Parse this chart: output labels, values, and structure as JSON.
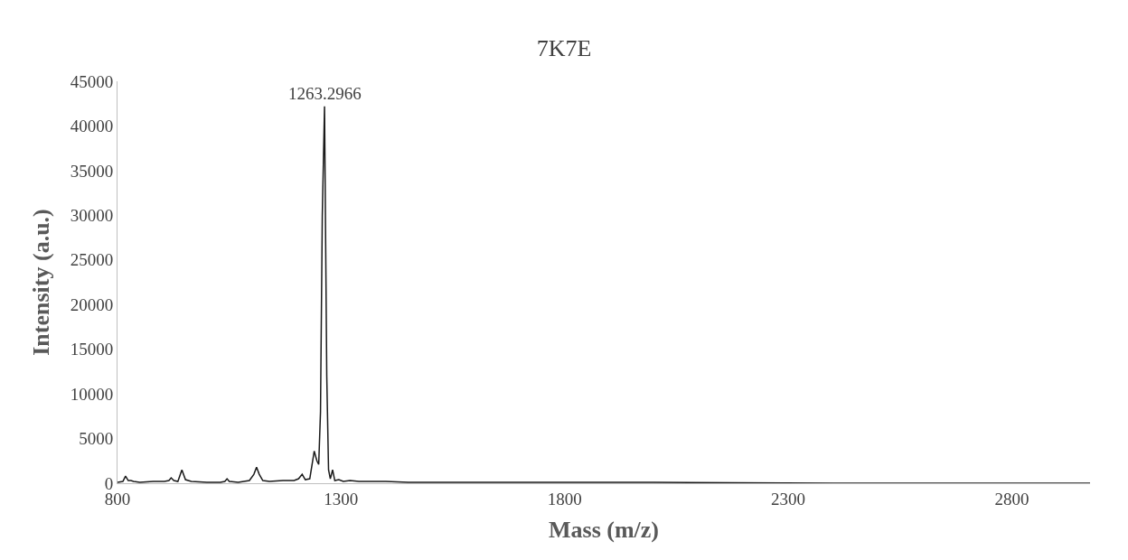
{
  "chart_data": {
    "type": "line",
    "title": "7K7E",
    "xlabel": "Mass (m/z)",
    "ylabel": "Intensity (a.u.)",
    "x": [
      800,
      812,
      818,
      824,
      830,
      836,
      850,
      880,
      905,
      915,
      920,
      926,
      935,
      944,
      952,
      965,
      1000,
      1030,
      1040,
      1045,
      1050,
      1070,
      1095,
      1105,
      1111,
      1117,
      1125,
      1140,
      1170,
      1195,
      1205,
      1213,
      1220,
      1230,
      1240,
      1246,
      1250,
      1254,
      1258,
      1263,
      1268,
      1272,
      1276,
      1281,
      1286,
      1295,
      1305,
      1320,
      1340,
      1400,
      1450,
      1500,
      1700,
      2000,
      2400,
      2975
    ],
    "series": [
      {
        "color": "#1a1a1a",
        "values": [
          100,
          200,
          800,
          300,
          300,
          200,
          100,
          200,
          200,
          300,
          600,
          300,
          200,
          1500,
          400,
          200,
          100,
          100,
          200,
          500,
          200,
          100,
          300,
          1000,
          1800,
          1000,
          300,
          200,
          300,
          300,
          500,
          1000,
          400,
          500,
          3600,
          2500,
          2100,
          8000,
          30000,
          42200,
          12000,
          1500,
          500,
          1500,
          300,
          400,
          200,
          300,
          200,
          200,
          100,
          100,
          100,
          100,
          0,
          0
        ]
      }
    ],
    "xlim": [
      800,
      2975
    ],
    "xticks": [
      800,
      1300,
      1800,
      2300,
      2800
    ],
    "ylim": [
      0,
      45000
    ],
    "yticks": [
      0,
      5000,
      10000,
      15000,
      20000,
      25000,
      30000,
      35000,
      40000,
      45000
    ],
    "annotations": [
      {
        "text": "1263.2966",
        "x": 1263,
        "y": 42200
      }
    ],
    "marker": "none",
    "line_style": "solid"
  }
}
